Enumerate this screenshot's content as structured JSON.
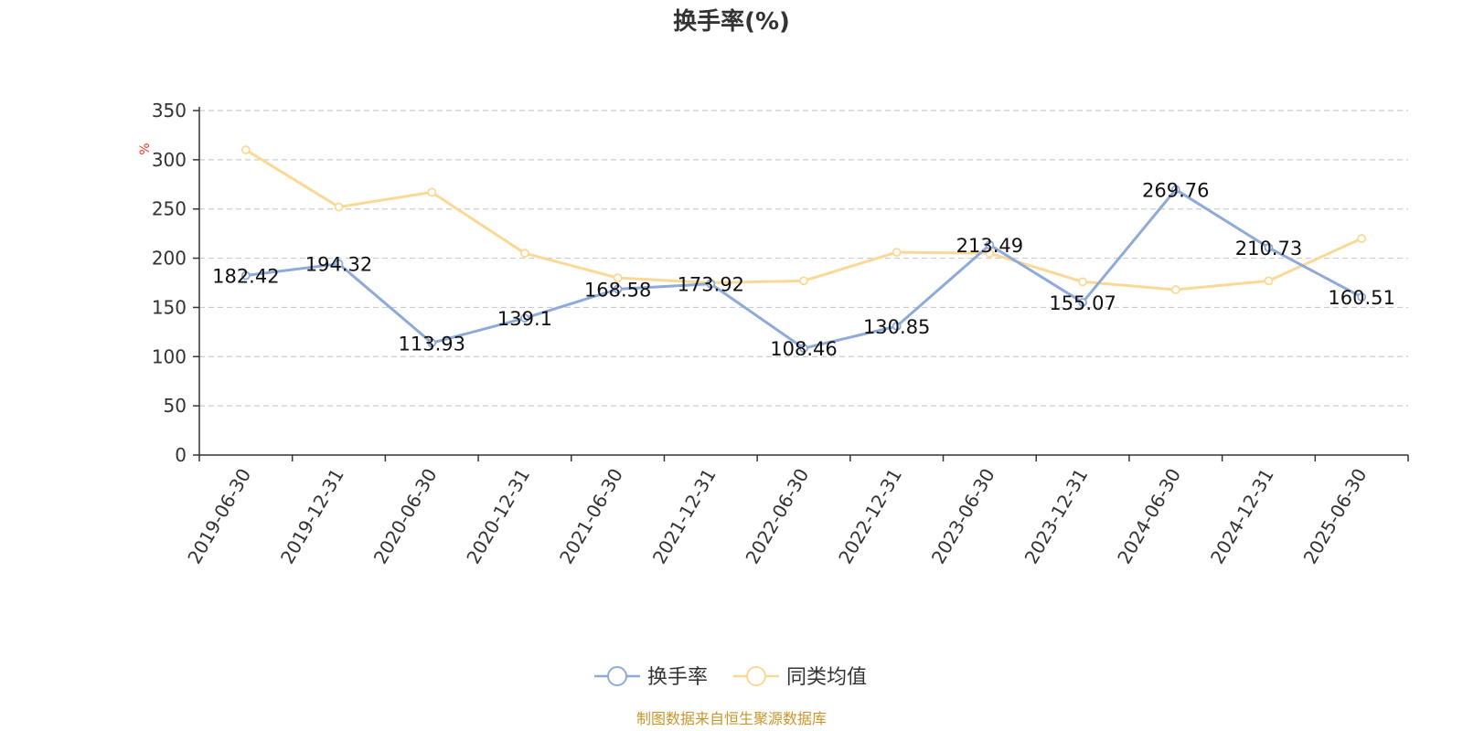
{
  "chart_data": {
    "type": "line",
    "title": "换手率(%)",
    "y_unit": "%",
    "ylim": [
      0,
      350
    ],
    "y_ticks": [
      0,
      50,
      100,
      150,
      200,
      250,
      300,
      350
    ],
    "grid": true,
    "legend_position": "bottom-center",
    "categories": [
      "2019-06-30",
      "2019-12-31",
      "2020-06-30",
      "2020-12-31",
      "2021-06-30",
      "2021-12-31",
      "2022-06-30",
      "2022-12-31",
      "2023-06-30",
      "2023-12-31",
      "2024-06-30",
      "2024-12-31",
      "2025-06-30"
    ],
    "series": [
      {
        "name": "换手率",
        "color": "#8eaad8",
        "show_labels": true,
        "values": [
          182.42,
          194.32,
          113.93,
          139.1,
          168.58,
          173.92,
          108.46,
          130.85,
          213.49,
          155.07,
          269.76,
          210.73,
          160.51
        ],
        "labels": [
          "182.42",
          "194.32",
          "113.93",
          "139.1",
          "168.58",
          "173.92",
          "108.46",
          "130.85",
          "213.49",
          "155.07",
          "269.76",
          "210.73",
          "160.51"
        ]
      },
      {
        "name": "同类均值",
        "color": "#fad996",
        "show_labels": false,
        "values": [
          310,
          252,
          267,
          205,
          180,
          175,
          177,
          206,
          205,
          176,
          168,
          177,
          220
        ]
      }
    ],
    "source": "制图数据来自恒生聚源数据库"
  }
}
